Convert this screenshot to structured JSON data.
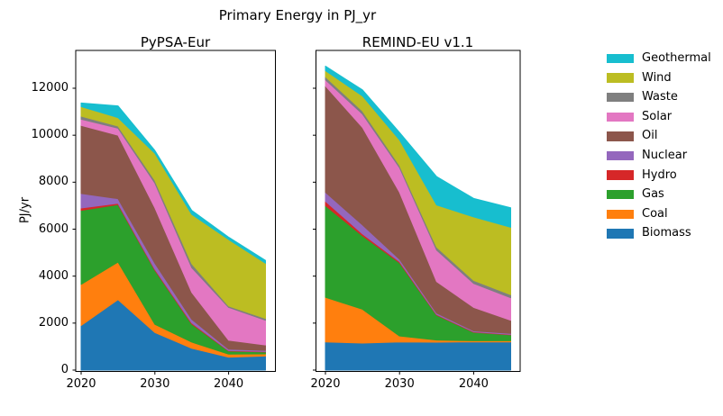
{
  "figure": {
    "title": "Primary Energy in PJ_yr"
  },
  "chart_data": {
    "type": "area",
    "stacked": true,
    "title": "Primary Energy in PJ_yr",
    "ylabel": "PJ/yr",
    "x": [
      2020,
      2025,
      2030,
      2035,
      2040,
      2045
    ],
    "xticks": [
      2020,
      2030,
      2040
    ],
    "yticks": [
      0,
      2000,
      4000,
      6000,
      8000,
      10000,
      12000
    ],
    "ylim": [
      0,
      13600
    ],
    "xlim": [
      2020,
      2045
    ],
    "grid": false,
    "legend_position": "right",
    "legend": [
      "Geothermal",
      "Wind",
      "Waste",
      "Solar",
      "Oil",
      "Nuclear",
      "Hydro",
      "Gas",
      "Coal",
      "Biomass"
    ],
    "stack_order_bottom_to_top": [
      "Biomass",
      "Coal",
      "Gas",
      "Hydro",
      "Nuclear",
      "Oil",
      "Solar",
      "Waste",
      "Wind",
      "Geothermal"
    ],
    "colors": {
      "Biomass": "#1f77b4",
      "Coal": "#ff7f0e",
      "Gas": "#2ca02c",
      "Hydro": "#d62728",
      "Nuclear": "#9467bd",
      "Oil": "#8c564b",
      "Solar": "#e377c2",
      "Waste": "#7f7f7f",
      "Wind": "#bcbd22",
      "Geothermal": "#17becf"
    },
    "panels": [
      {
        "title": "PyPSA-Eur",
        "series": [
          {
            "name": "Biomass",
            "values": [
              1900,
              3000,
              1600,
              930,
              550,
              600
            ]
          },
          {
            "name": "Coal",
            "values": [
              1750,
              1600,
              350,
              260,
              130,
              90
            ]
          },
          {
            "name": "Gas",
            "values": [
              3150,
              2450,
              2300,
              770,
              130,
              80
            ]
          },
          {
            "name": "Hydro",
            "values": [
              100,
              50,
              50,
              50,
              20,
              20
            ]
          },
          {
            "name": "Nuclear",
            "values": [
              620,
              200,
              250,
              150,
              60,
              50
            ]
          },
          {
            "name": "Oil",
            "values": [
              2900,
              2700,
              2360,
              1150,
              380,
              230
            ]
          },
          {
            "name": "Solar",
            "values": [
              260,
              300,
              1050,
              1050,
              1400,
              1050
            ]
          },
          {
            "name": "Waste",
            "values": [
              130,
              90,
              120,
              170,
              60,
              80
            ]
          },
          {
            "name": "Wind",
            "values": [
              410,
              360,
              1150,
              2100,
              2830,
              2350
            ]
          },
          {
            "name": "Geothermal",
            "values": [
              150,
              500,
              120,
              170,
              100,
              120
            ]
          }
        ]
      },
      {
        "title": "REMIND-EU v1.1",
        "series": [
          {
            "name": "Biomass",
            "values": [
              1200,
              1150,
              1200,
              1190,
              1200,
              1200
            ]
          },
          {
            "name": "Coal",
            "values": [
              1900,
              1440,
              250,
              90,
              50,
              50
            ]
          },
          {
            "name": "Gas",
            "values": [
              3900,
              3130,
              3120,
              1060,
              360,
              250
            ]
          },
          {
            "name": "Hydro",
            "values": [
              190,
              80,
              50,
              30,
              20,
              20
            ]
          },
          {
            "name": "Nuclear",
            "values": [
              380,
              380,
              100,
              60,
              40,
              40
            ]
          },
          {
            "name": "Oil",
            "values": [
              4530,
              4150,
              2850,
              1340,
              1000,
              560
            ]
          },
          {
            "name": "Solar",
            "values": [
              260,
              570,
              1050,
              1340,
              1020,
              960
            ]
          },
          {
            "name": "Waste",
            "values": [
              130,
              130,
              100,
              130,
              130,
              130
            ]
          },
          {
            "name": "Wind",
            "values": [
              260,
              640,
              1080,
              1790,
              2700,
              2870
            ]
          },
          {
            "name": "Geothermal",
            "values": [
              190,
              260,
              320,
              1210,
              790,
              830
            ]
          }
        ]
      }
    ]
  }
}
